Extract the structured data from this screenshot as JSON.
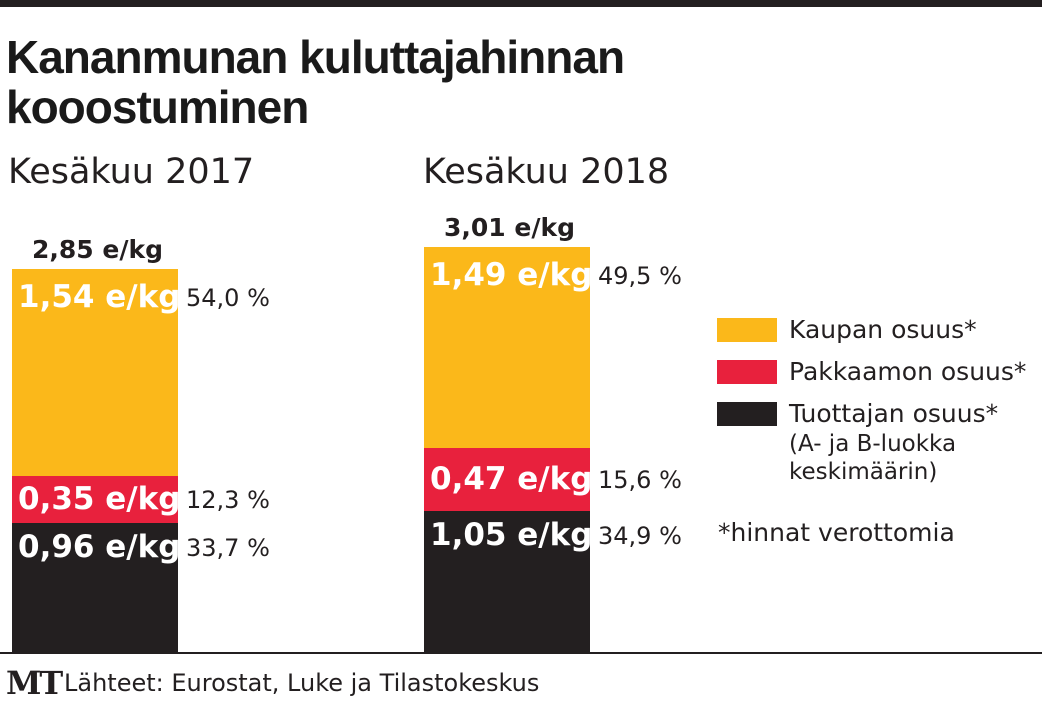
{
  "title": "Kananmunan kuluttajahinnan kooostuminen",
  "chart_data": {
    "type": "bar",
    "stacked": true,
    "unit": "e/kg",
    "categories": [
      "Kesäkuu 2017",
      "Kesäkuu 2018"
    ],
    "totals": [
      "2,85 e/kg",
      "3,01 e/kg"
    ],
    "series": [
      {
        "name": "Kaupan osuus*",
        "color": "#fbb81a",
        "values": [
          1.54,
          1.49
        ],
        "labels": [
          "1,54 e/kg",
          "1,49 e/kg"
        ],
        "percents": [
          "54,0 %",
          "49,5 %"
        ]
      },
      {
        "name": "Pakkaamon osuus*",
        "color": "#e8213d",
        "values": [
          0.35,
          0.47
        ],
        "labels": [
          "0,35 e/kg",
          "0,47 e/kg"
        ],
        "percents": [
          "12,3 %",
          "15,6 %"
        ]
      },
      {
        "name": "Tuottajan osuus*",
        "color": "#231f20",
        "values": [
          0.96,
          1.05
        ],
        "labels": [
          "0,96 e/kg",
          "1,05 e/kg"
        ],
        "percents": [
          "33,7 %",
          "34,9 %"
        ]
      }
    ]
  },
  "legend": {
    "items": [
      {
        "label": "Kaupan osuus*",
        "color": "#fbb81a"
      },
      {
        "label": "Pakkaamon osuus*",
        "color": "#e8213d"
      },
      {
        "label": "Tuottajan osuus*",
        "color": "#231f20"
      }
    ],
    "note_line1": "(A- ja B-luokka",
    "note_line2": "keskimäärin)"
  },
  "footnote": "*hinnat verottomia",
  "logo": "MT",
  "source": "Lähteet: Eurostat, Luke ja Tilastokeskus"
}
